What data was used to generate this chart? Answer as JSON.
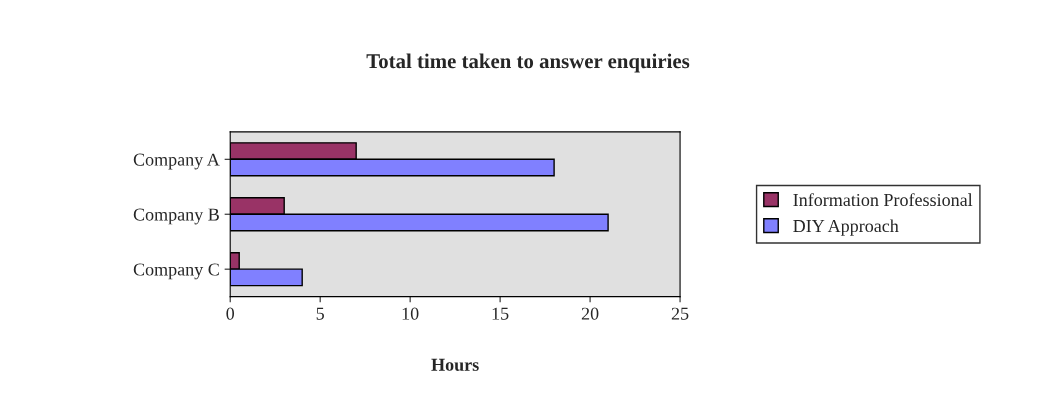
{
  "chart_data": {
    "type": "bar",
    "orientation": "horizontal",
    "title": "Total time taken to answer enquiries",
    "xlabel": "Hours",
    "categories": [
      "Company A",
      "Company B",
      "Company C"
    ],
    "series": [
      {
        "name": "Information Professional",
        "color": "#993366",
        "values": [
          7,
          3,
          0.5
        ]
      },
      {
        "name": "DIY Approach",
        "color": "#8080ff",
        "values": [
          18,
          21,
          4
        ]
      }
    ],
    "xlim": [
      0,
      25
    ],
    "xticks": [
      0,
      5,
      10,
      15,
      20,
      25
    ],
    "grid": false,
    "legend": "right"
  }
}
